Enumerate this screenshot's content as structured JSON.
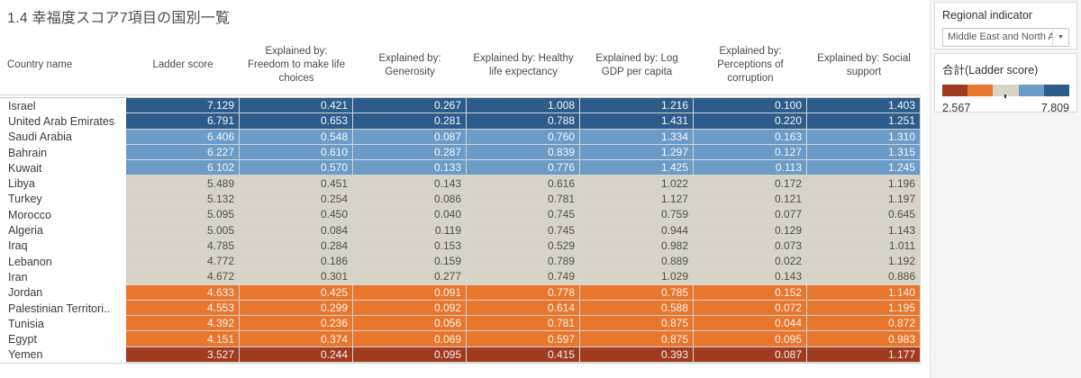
{
  "title": "1.4 幸福度スコア7項目の国別一覧",
  "sidebar": {
    "filter": {
      "label": "Regional indicator",
      "value": "Middle East and North A...",
      "caret": "▼"
    },
    "legend": {
      "title": "合計(Ladder score)",
      "min": "2.567",
      "max": "7.809",
      "colors": [
        "#a13b20",
        "#e8762d",
        "#d7d3c6",
        "#6b9bc7",
        "#2e5c8a"
      ]
    }
  },
  "palette": {
    "dark-blue": {
      "bg": "#2e5c8a",
      "text": "#f2f6fa"
    },
    "light-blue": {
      "bg": "#6b9bc7",
      "text": "#f4f8fb"
    },
    "gray": {
      "bg": "#d7d3c6",
      "text": "#53504a"
    },
    "orange": {
      "bg": "#e8762d",
      "text": "#fdf4ee"
    },
    "dark-red": {
      "bg": "#a13b20",
      "text": "#f8ece8"
    }
  },
  "table": {
    "headers": [
      "Country name",
      "Ladder score",
      "Explained by: Freedom to make life choices",
      "Explained by: Generosity",
      "Explained by: Healthy life expectancy",
      "Explained by: Log GDP per capita",
      "Explained by: Perceptions of corruption",
      "Explained by: Social support"
    ],
    "rows": [
      {
        "country": "Israel",
        "band": "dark-blue",
        "values": [
          "7.129",
          "0.421",
          "0.267",
          "1.008",
          "1.216",
          "0.100",
          "1.403"
        ]
      },
      {
        "country": "United Arab Emirates",
        "band": "dark-blue",
        "values": [
          "6.791",
          "0.653",
          "0.281",
          "0.788",
          "1.431",
          "0.220",
          "1.251"
        ]
      },
      {
        "country": "Saudi Arabia",
        "band": "light-blue",
        "values": [
          "6.406",
          "0.548",
          "0.087",
          "0.760",
          "1.334",
          "0.163",
          "1.310"
        ]
      },
      {
        "country": "Bahrain",
        "band": "light-blue",
        "values": [
          "6.227",
          "0.610",
          "0.287",
          "0.839",
          "1.297",
          "0.127",
          "1.315"
        ]
      },
      {
        "country": "Kuwait",
        "band": "light-blue",
        "values": [
          "6.102",
          "0.570",
          "0.133",
          "0.776",
          "1.425",
          "0.113",
          "1.245"
        ]
      },
      {
        "country": "Libya",
        "band": "gray",
        "values": [
          "5.489",
          "0.451",
          "0.143",
          "0.616",
          "1.022",
          "0.172",
          "1.196"
        ]
      },
      {
        "country": "Turkey",
        "band": "gray",
        "values": [
          "5.132",
          "0.254",
          "0.086",
          "0.781",
          "1.127",
          "0.121",
          "1.197"
        ]
      },
      {
        "country": "Morocco",
        "band": "gray",
        "values": [
          "5.095",
          "0.450",
          "0.040",
          "0.745",
          "0.759",
          "0.077",
          "0.645"
        ]
      },
      {
        "country": "Algeria",
        "band": "gray",
        "values": [
          "5.005",
          "0.084",
          "0.119",
          "0.745",
          "0.944",
          "0.129",
          "1.143"
        ]
      },
      {
        "country": "Iraq",
        "band": "gray",
        "values": [
          "4.785",
          "0.284",
          "0.153",
          "0.529",
          "0.982",
          "0.073",
          "1.011"
        ]
      },
      {
        "country": "Lebanon",
        "band": "gray",
        "values": [
          "4.772",
          "0.186",
          "0.159",
          "0.789",
          "0.889",
          "0.022",
          "1.192"
        ]
      },
      {
        "country": "Iran",
        "band": "gray",
        "values": [
          "4.672",
          "0.301",
          "0.277",
          "0.749",
          "1.029",
          "0.143",
          "0.886"
        ]
      },
      {
        "country": "Jordan",
        "band": "orange",
        "values": [
          "4.633",
          "0.425",
          "0.091",
          "0.778",
          "0.785",
          "0.152",
          "1.140"
        ]
      },
      {
        "country": "Palestinian Territori..",
        "band": "orange",
        "values": [
          "4.553",
          "0.299",
          "0.092",
          "0.614",
          "0.588",
          "0.072",
          "1.195"
        ]
      },
      {
        "country": "Tunisia",
        "band": "orange",
        "values": [
          "4.392",
          "0.236",
          "0.056",
          "0.781",
          "0.875",
          "0.044",
          "0.872"
        ]
      },
      {
        "country": "Egypt",
        "band": "orange",
        "values": [
          "4.151",
          "0.374",
          "0.069",
          "0.597",
          "0.875",
          "0.095",
          "0.983"
        ]
      },
      {
        "country": "Yemen",
        "band": "dark-red",
        "values": [
          "3.527",
          "0.244",
          "0.095",
          "0.415",
          "0.393",
          "0.087",
          "1.177"
        ]
      }
    ]
  }
}
